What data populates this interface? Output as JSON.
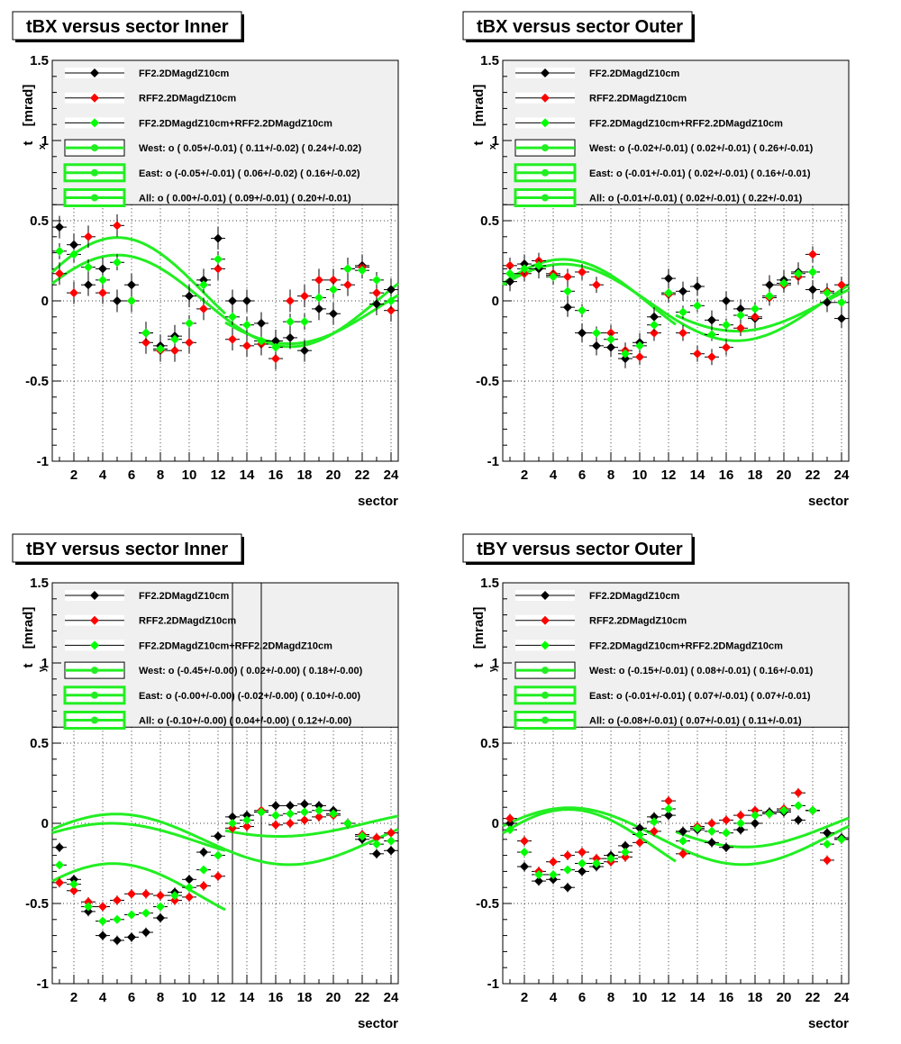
{
  "colors": {
    "series_black": "#000000",
    "series_red": "#ff0000",
    "series_green": "#00ff00",
    "fit_green": "#22ee22",
    "legend_bg": "#f0f0f0",
    "grid": "#000000"
  },
  "chart_data": [
    {
      "type": "scatter",
      "title": "tBX versus  sector Inner",
      "xlabel": "sector",
      "ylabel_main": "t",
      "ylabel_sub": "x",
      "ylabel_unit": "[mrad]",
      "xlim": [
        0.5,
        24.5
      ],
      "ylim": [
        -1,
        1.5
      ],
      "xticks": [
        2,
        4,
        6,
        8,
        10,
        12,
        14,
        16,
        18,
        20,
        22,
        24
      ],
      "yticks": [
        -1,
        -0.5,
        0,
        0.5,
        1,
        1.5
      ],
      "grid": true,
      "legend": [
        {
          "marker": "black",
          "text": "FF2.2DMagdZ10cm"
        },
        {
          "marker": "red",
          "text": "RFF2.2DMagdZ10cm"
        },
        {
          "marker": "green",
          "text": "FF2.2DMagdZ10cm+RFF2.2DMagdZ10cm"
        },
        {
          "marker": "fit-thin",
          "text": "West: o ( 0.05+/-0.01) ( 0.11+/-0.02) ( 0.24+/-0.02)"
        },
        {
          "marker": "fit",
          "text": "East: o (-0.05+/-0.01) ( 0.06+/-0.02) ( 0.16+/-0.02)"
        },
        {
          "marker": "fit",
          "text": "All: o ( 0.00+/-0.01) ( 0.09+/-0.01) ( 0.20+/-0.01)"
        }
      ],
      "x": [
        1,
        2,
        3,
        4,
        5,
        6,
        7,
        8,
        9,
        10,
        11,
        12,
        13,
        14,
        15,
        16,
        17,
        18,
        19,
        20,
        21,
        22,
        23,
        24
      ],
      "series": [
        {
          "color": "black",
          "values": [
            0.46,
            0.35,
            0.1,
            0.2,
            0.0,
            0.1,
            -0.2,
            -0.28,
            -0.22,
            0.03,
            0.13,
            0.39,
            0.0,
            0.0,
            -0.14,
            -0.25,
            -0.23,
            -0.31,
            -0.05,
            -0.08,
            0.2,
            0.22,
            -0.02,
            0.07
          ],
          "err": 0.07
        },
        {
          "color": "red",
          "values": [
            0.17,
            0.05,
            0.4,
            0.05,
            0.47,
            0.0,
            -0.26,
            -0.31,
            -0.31,
            -0.26,
            -0.05,
            0.2,
            -0.24,
            -0.28,
            -0.27,
            -0.36,
            0.0,
            0.03,
            0.13,
            0.13,
            0.1,
            0.21,
            0.05,
            -0.06
          ],
          "err": 0.07
        },
        {
          "color": "green",
          "values": [
            0.31,
            0.29,
            0.21,
            0.13,
            0.24,
            0.0,
            -0.2,
            -0.3,
            -0.24,
            -0.14,
            0.1,
            0.26,
            -0.1,
            -0.15,
            -0.25,
            -0.29,
            -0.13,
            -0.13,
            0.02,
            0.07,
            0.2,
            0.19,
            0.13,
            0.0
          ],
          "err": 0.05
        }
      ],
      "fits": [
        {
          "range": [
            0.5,
            12.5
          ],
          "o": 0.05,
          "a": 0.11,
          "b": 0.24
        },
        {
          "range": [
            12.5,
            24.5
          ],
          "o": -0.05,
          "a": 0.06,
          "b": 0.16
        },
        {
          "range": [
            0.5,
            12.5
          ],
          "o": 0.0,
          "a": 0.09,
          "b": 0.2
        },
        {
          "range": [
            12.5,
            24.5
          ],
          "o": 0.0,
          "a": 0.09,
          "b": 0.2
        }
      ],
      "vlines": []
    },
    {
      "type": "scatter",
      "title": "tBX versus  sector Outer",
      "xlabel": "sector",
      "ylabel_main": "t",
      "ylabel_sub": "x",
      "ylabel_unit": "[mrad]",
      "xlim": [
        0.5,
        24.5
      ],
      "ylim": [
        -1,
        1.5
      ],
      "xticks": [
        2,
        4,
        6,
        8,
        10,
        12,
        14,
        16,
        18,
        20,
        22,
        24
      ],
      "yticks": [
        -1,
        -0.5,
        0,
        0.5,
        1,
        1.5
      ],
      "grid": true,
      "legend": [
        {
          "marker": "black",
          "text": "FF2.2DMagdZ10cm"
        },
        {
          "marker": "red",
          "text": "RFF2.2DMagdZ10cm"
        },
        {
          "marker": "green",
          "text": "FF2.2DMagdZ10cm+RFF2.2DMagdZ10cm"
        },
        {
          "marker": "fit-thin",
          "text": "West: o (-0.02+/-0.01) ( 0.02+/-0.01) ( 0.26+/-0.01)"
        },
        {
          "marker": "fit",
          "text": "East: o (-0.01+/-0.01) ( 0.02+/-0.01) ( 0.16+/-0.01)"
        },
        {
          "marker": "fit",
          "text": "All: o (-0.01+/-0.01) ( 0.02+/-0.01) ( 0.22+/-0.01)"
        }
      ],
      "x": [
        1,
        2,
        3,
        4,
        5,
        6,
        7,
        8,
        9,
        10,
        11,
        12,
        13,
        14,
        15,
        16,
        17,
        18,
        19,
        20,
        21,
        22,
        23,
        24
      ],
      "series": [
        {
          "color": "black",
          "values": [
            0.12,
            0.23,
            0.2,
            0.16,
            -0.04,
            -0.2,
            -0.28,
            -0.29,
            -0.36,
            -0.26,
            -0.1,
            0.14,
            0.06,
            0.09,
            -0.12,
            0.0,
            -0.05,
            -0.11,
            0.1,
            0.13,
            0.18,
            0.07,
            -0.01,
            -0.11
          ],
          "err": 0.06
        },
        {
          "color": "red",
          "values": [
            0.22,
            0.17,
            0.25,
            0.17,
            0.15,
            0.18,
            0.1,
            -0.2,
            -0.31,
            -0.35,
            -0.2,
            0.04,
            -0.2,
            -0.33,
            -0.35,
            -0.29,
            -0.17,
            -0.1,
            0.02,
            0.1,
            0.15,
            0.29,
            0.06,
            0.1
          ],
          "err": 0.05
        },
        {
          "color": "green",
          "values": [
            0.17,
            0.2,
            0.22,
            0.15,
            0.06,
            -0.06,
            -0.2,
            -0.24,
            -0.33,
            -0.28,
            -0.15,
            0.05,
            -0.07,
            -0.03,
            -0.21,
            -0.15,
            -0.09,
            -0.05,
            0.03,
            0.11,
            0.17,
            0.18,
            0.05,
            -0.01
          ],
          "err": 0.04
        }
      ],
      "fits": [
        {
          "range": [
            0.5,
            12.5
          ],
          "o": -0.02,
          "a": 0.02,
          "b": 0.26
        },
        {
          "range": [
            12.5,
            24.5
          ],
          "o": -0.01,
          "a": 0.02,
          "b": 0.16
        },
        {
          "range": [
            0.5,
            12.5
          ],
          "o": -0.01,
          "a": 0.02,
          "b": 0.22
        },
        {
          "range": [
            12.5,
            24.5
          ],
          "o": -0.01,
          "a": 0.02,
          "b": 0.22
        }
      ],
      "vlines": []
    },
    {
      "type": "scatter",
      "title": "tBY versus  sector Inner",
      "xlabel": "sector",
      "ylabel_main": "t",
      "ylabel_sub": "y",
      "ylabel_unit": "[mrad]",
      "xlim": [
        0.5,
        24.5
      ],
      "ylim": [
        -1,
        1.5
      ],
      "xticks": [
        2,
        4,
        6,
        8,
        10,
        12,
        14,
        16,
        18,
        20,
        22,
        24
      ],
      "yticks": [
        -1,
        -0.5,
        0,
        0.5,
        1,
        1.5
      ],
      "grid": true,
      "legend": [
        {
          "marker": "black",
          "text": "FF2.2DMagdZ10cm"
        },
        {
          "marker": "red",
          "text": "RFF2.2DMagdZ10cm"
        },
        {
          "marker": "green",
          "text": "FF2.2DMagdZ10cm+RFF2.2DMagdZ10cm"
        },
        {
          "marker": "fit-thin",
          "text": "West: o (-0.45+/-0.00) ( 0.02+/-0.00) ( 0.18+/-0.00)"
        },
        {
          "marker": "fit",
          "text": "East: o (-0.00+/-0.00) (-0.02+/-0.00) ( 0.10+/-0.00)"
        },
        {
          "marker": "fit",
          "text": "All: o (-0.10+/-0.00) ( 0.04+/-0.00) ( 0.12+/-0.00)"
        }
      ],
      "x": [
        1,
        2,
        3,
        4,
        5,
        6,
        7,
        8,
        9,
        10,
        11,
        12,
        13,
        14,
        15,
        16,
        17,
        18,
        19,
        20,
        21,
        22,
        23,
        24
      ],
      "series": [
        {
          "color": "black",
          "values": [
            -0.15,
            -0.35,
            -0.55,
            -0.7,
            -0.73,
            -0.71,
            -0.68,
            -0.59,
            -0.43,
            -0.35,
            -0.18,
            -0.08,
            0.04,
            0.05,
            0.07,
            0.11,
            0.11,
            0.12,
            0.11,
            0.08,
            0.0,
            -0.1,
            -0.19,
            -0.17
          ],
          "err": 0.03
        },
        {
          "color": "red",
          "values": [
            -0.37,
            -0.42,
            -0.49,
            -0.52,
            -0.48,
            -0.44,
            -0.44,
            -0.45,
            -0.48,
            -0.46,
            -0.39,
            -0.33,
            -0.03,
            -0.02,
            0.08,
            -0.01,
            0.0,
            0.02,
            0.04,
            0.05,
            0.0,
            -0.07,
            -0.09,
            -0.06
          ],
          "err": 0.03
        },
        {
          "color": "green",
          "values": [
            -0.26,
            -0.38,
            -0.52,
            -0.61,
            -0.6,
            -0.57,
            -0.56,
            -0.52,
            -0.45,
            -0.4,
            -0.29,
            -0.2,
            0.0,
            0.02,
            0.07,
            0.05,
            0.06,
            0.07,
            0.08,
            0.06,
            0.0,
            -0.08,
            -0.13,
            -0.11
          ],
          "err": 0.02
        }
      ],
      "fits": [
        {
          "range": [
            0.5,
            12.5
          ],
          "o": -0.45,
          "a": 0.02,
          "b": 0.18
        },
        {
          "range": [
            12.5,
            24.5
          ],
          "o": -0.0,
          "a": -0.02,
          "b": 0.1
        },
        {
          "range": [
            0.5,
            12.5
          ],
          "o": -0.1,
          "a": 0.04,
          "b": 0.12
        },
        {
          "range": [
            12.5,
            24.5
          ],
          "o": -0.1,
          "a": 0.04,
          "b": 0.12
        },
        {
          "range": [
            0.5,
            12.5
          ],
          "o": -0.115,
          "a": 0.0,
          "b": 0.115
        }
      ],
      "vlines": [
        13,
        15
      ]
    },
    {
      "type": "scatter",
      "title": "tBY versus  sector Outer",
      "xlabel": "sector",
      "ylabel_main": "t",
      "ylabel_sub": "y",
      "ylabel_unit": "[mrad]",
      "xlim": [
        0.5,
        24.5
      ],
      "ylim": [
        -1,
        1.5
      ],
      "xticks": [
        2,
        4,
        6,
        8,
        10,
        12,
        14,
        16,
        18,
        20,
        22,
        24
      ],
      "yticks": [
        -1,
        -0.5,
        0,
        0.5,
        1,
        1.5
      ],
      "grid": true,
      "legend": [
        {
          "marker": "black",
          "text": "FF2.2DMagdZ10cm"
        },
        {
          "marker": "red",
          "text": "RFF2.2DMagdZ10cm"
        },
        {
          "marker": "green",
          "text": "FF2.2DMagdZ10cm+RFF2.2DMagdZ10cm"
        },
        {
          "marker": "fit-thin",
          "text": "West: o (-0.15+/-0.01) ( 0.08+/-0.01) ( 0.16+/-0.01)"
        },
        {
          "marker": "fit",
          "text": "East: o (-0.01+/-0.01) ( 0.07+/-0.01) ( 0.07+/-0.01)"
        },
        {
          "marker": "fit",
          "text": "All: o (-0.08+/-0.01) ( 0.07+/-0.01) ( 0.11+/-0.01)"
        }
      ],
      "x": [
        1,
        2,
        3,
        4,
        5,
        6,
        7,
        8,
        9,
        10,
        11,
        12,
        13,
        14,
        15,
        16,
        17,
        18,
        19,
        20,
        21,
        22,
        23,
        24
      ],
      "series": [
        {
          "color": "black",
          "values": [
            0.0,
            -0.27,
            -0.36,
            -0.35,
            -0.4,
            -0.3,
            -0.27,
            -0.2,
            -0.14,
            -0.03,
            0.04,
            0.05,
            -0.05,
            -0.04,
            -0.12,
            -0.15,
            -0.04,
            0.0,
            0.07,
            0.07,
            0.02,
            0.08,
            -0.06,
            -0.09
          ],
          "err": 0.03
        },
        {
          "color": "red",
          "values": [
            0.03,
            -0.11,
            -0.3,
            -0.24,
            -0.2,
            -0.18,
            -0.22,
            -0.24,
            -0.21,
            -0.12,
            -0.05,
            0.14,
            -0.19,
            -0.02,
            0.0,
            0.02,
            0.05,
            0.08,
            0.06,
            0.09,
            0.19,
            0.08,
            -0.23,
            -0.1
          ],
          "err": 0.03
        },
        {
          "color": "green",
          "values": [
            -0.04,
            -0.18,
            -0.32,
            -0.32,
            -0.29,
            -0.25,
            -0.25,
            -0.22,
            -0.18,
            -0.07,
            0.01,
            0.09,
            -0.11,
            -0.03,
            -0.05,
            -0.06,
            0.0,
            0.05,
            0.06,
            0.08,
            0.11,
            0.08,
            -0.13,
            -0.1
          ],
          "err": 0.02
        }
      ],
      "fits": [
        {
          "range": [
            0.5,
            12.5
          ],
          "o": -0.15,
          "a": 0.08,
          "b": 0.16
        },
        {
          "range": [
            12.5,
            24.5
          ],
          "o": -0.01,
          "a": 0.07,
          "b": 0.07
        },
        {
          "range": [
            0.5,
            12.5
          ],
          "o": -0.08,
          "a": 0.07,
          "b": 0.11
        },
        {
          "range": [
            12.5,
            24.5
          ],
          "o": -0.08,
          "a": 0.07,
          "b": 0.11
        }
      ],
      "vlines": []
    }
  ]
}
